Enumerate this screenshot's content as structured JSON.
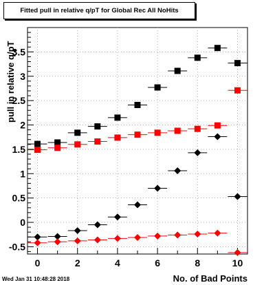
{
  "title": "Fitted pull in relative q/pT for Global Rec All NoHits",
  "timestamp": "Wed Jan 31 10:48:28 2018",
  "chart_data": {
    "type": "scatter",
    "title": "Fitted pull in relative q/pT for Global Rec All NoHits",
    "xlabel": "No. of Bad Points",
    "ylabel": "pull in relative q/pT",
    "xlim": [
      -0.5,
      10.5
    ],
    "ylim": [
      -0.65,
      4.0
    ],
    "xticks": [
      "0",
      "2",
      "4",
      "6",
      "8",
      "10"
    ],
    "yticks": [
      "-0.5",
      "0",
      "0.5",
      "1",
      "1.5",
      "2",
      "2.5",
      "3",
      "3.5"
    ],
    "grid": true,
    "series": [
      {
        "marker": "square",
        "color": "#000000",
        "x": [
          0,
          1,
          2,
          3,
          4,
          5,
          6,
          7,
          8,
          9,
          10
        ],
        "values": [
          1.61,
          1.64,
          1.84,
          1.97,
          2.15,
          2.41,
          2.77,
          3.11,
          3.38,
          3.58,
          3.27
        ]
      },
      {
        "marker": "square",
        "color": "#ff0000",
        "x": [
          0,
          1,
          2,
          3,
          4,
          5,
          6,
          7,
          8,
          9,
          10
        ],
        "values": [
          1.49,
          1.53,
          1.6,
          1.66,
          1.74,
          1.8,
          1.84,
          1.88,
          1.92,
          1.99,
          2.71
        ]
      },
      {
        "marker": "diamond",
        "color": "#000000",
        "x": [
          0,
          1,
          2,
          3,
          4,
          5,
          6,
          7,
          8,
          9,
          10
        ],
        "values": [
          -0.3,
          -0.29,
          -0.17,
          -0.05,
          0.11,
          0.36,
          0.7,
          1.06,
          1.43,
          1.76,
          0.53
        ]
      },
      {
        "marker": "diamond",
        "color": "#ff0000",
        "x": [
          0,
          1,
          2,
          3,
          4,
          5,
          6,
          7,
          8,
          9,
          10
        ],
        "values": [
          -0.42,
          -0.4,
          -0.38,
          -0.36,
          -0.33,
          -0.31,
          -0.28,
          -0.26,
          -0.24,
          -0.22,
          -0.62
        ]
      }
    ]
  }
}
